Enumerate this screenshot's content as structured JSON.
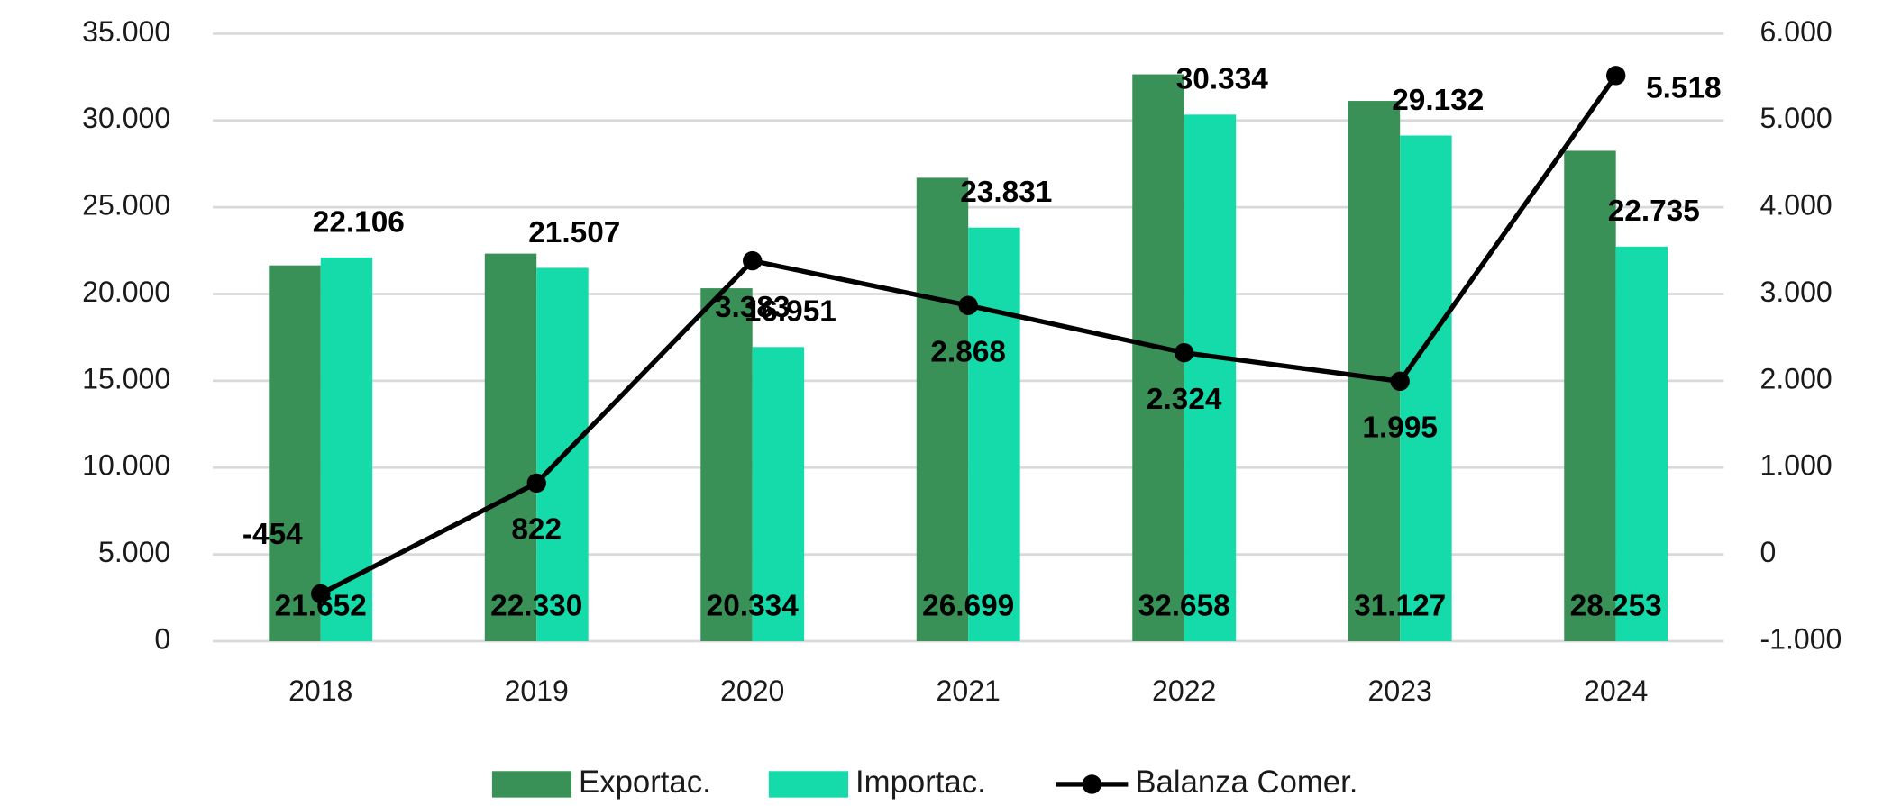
{
  "chart_data": {
    "type": "bar",
    "categories": [
      "2018",
      "2019",
      "2020",
      "2021",
      "2022",
      "2023",
      "2024"
    ],
    "series": [
      {
        "name": "Exportac.",
        "color": "#3a9157",
        "values": [
          21652,
          22330,
          20334,
          26699,
          32658,
          31127,
          28253
        ],
        "value_labels": [
          "21.652",
          "22.330",
          "20.334",
          "26.699",
          "32.658",
          "31.127",
          "28.253"
        ]
      },
      {
        "name": "Importac.",
        "color": "#14dba9",
        "values": [
          22106,
          21507,
          16951,
          23831,
          30334,
          29132,
          22735
        ],
        "value_labels": [
          "22.106",
          "21.507",
          "16.951",
          "23.831",
          "30.334",
          "29.132",
          "22.735"
        ]
      },
      {
        "name": "Balanza Comer.",
        "color": "#000000",
        "type": "line",
        "axis": "y2",
        "values": [
          -454,
          822,
          3383,
          2868,
          2324,
          1995,
          5518
        ],
        "value_labels": [
          "-454",
          "822",
          "3.383",
          "2.868",
          "2.324",
          "1.995",
          "5.518"
        ]
      }
    ],
    "ylim": [
      0,
      35000
    ],
    "yticks": [
      0,
      {
        "value": 5000,
        "label": "5.000"
      },
      {
        "value": 10000,
        "label": "10.000"
      },
      {
        "value": 15000,
        "label": "15.000"
      },
      {
        "value": 20000,
        "label": "20.000"
      },
      {
        "value": 25000,
        "label": "25.000"
      },
      {
        "value": 30000,
        "label": "30.000"
      },
      {
        "value": 35000,
        "label": "35.000"
      }
    ],
    "y2lim": [
      -1000,
      6000
    ],
    "y2ticks": [
      {
        "value": -1000,
        "label": "-1.000"
      },
      0,
      {
        "value": 1000,
        "label": "1.000"
      },
      {
        "value": 2000,
        "label": "2.000"
      },
      {
        "value": 3000,
        "label": "3.000"
      },
      {
        "value": 4000,
        "label": "4.000"
      },
      {
        "value": 5000,
        "label": "5.000"
      },
      {
        "value": 6000,
        "label": "6.000"
      }
    ],
    "grid": true,
    "legend": "bottom"
  }
}
